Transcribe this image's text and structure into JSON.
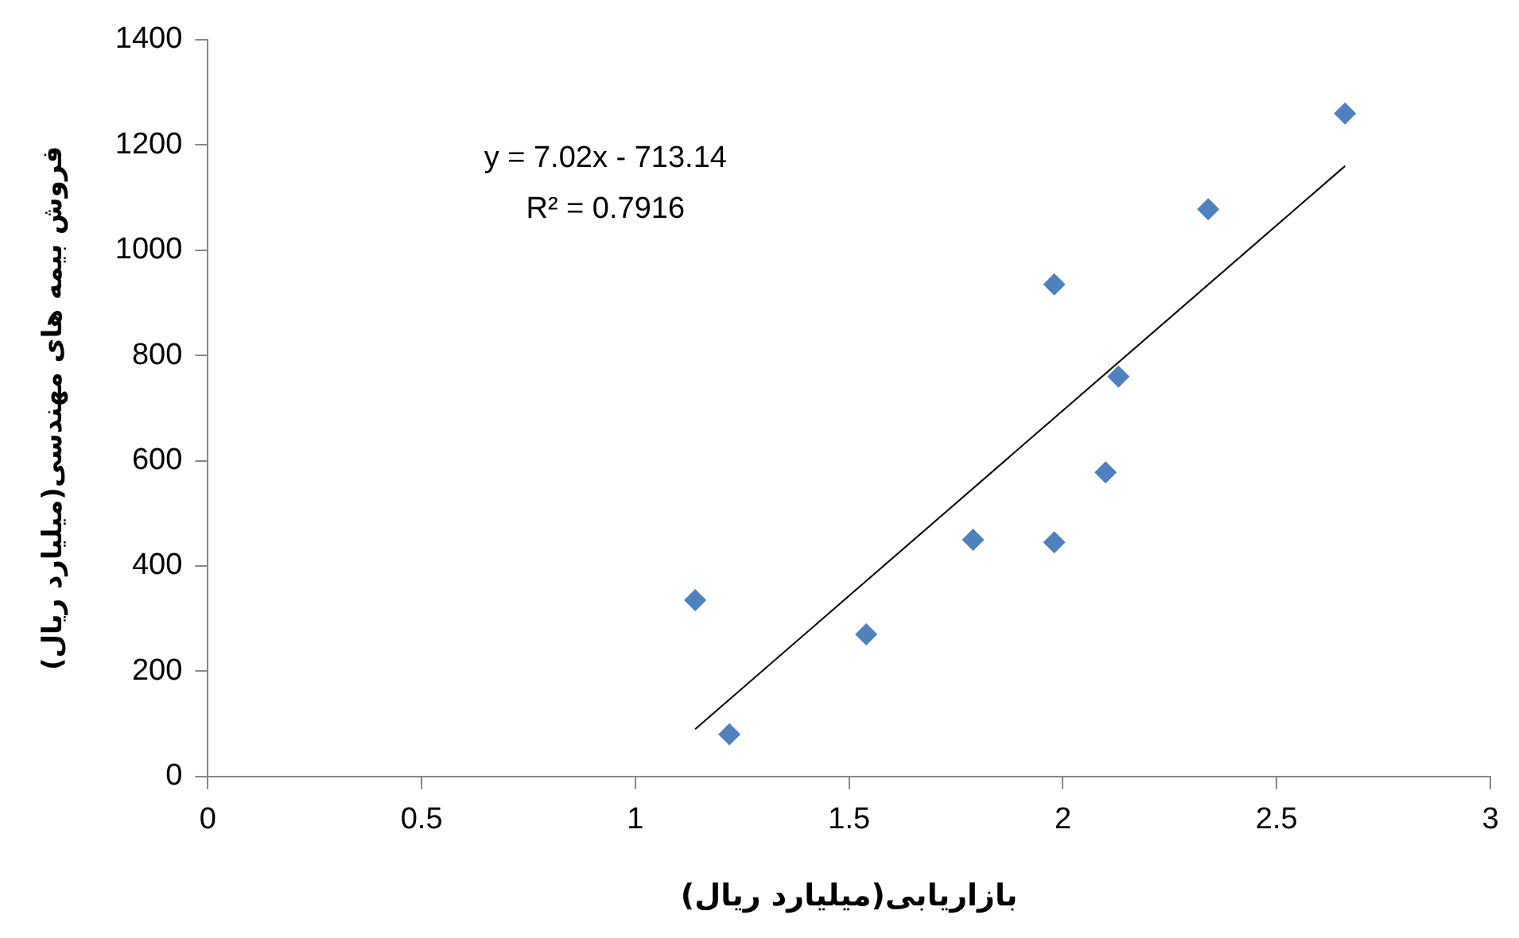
{
  "chart_data": {
    "type": "scatter",
    "xlabel": "بازاریابی(میلیارد ریال)",
    "ylabel": "فروش بیمه های مهندسی(میلیارد ریال)",
    "annotations": [
      "y = 7.02x - 713.14",
      "R² = 0.7916"
    ],
    "x": [
      1.14,
      1.22,
      1.54,
      1.79,
      1.98,
      1.98,
      2.1,
      2.13,
      2.34,
      2.66
    ],
    "series": [
      {
        "color": "#4f81bd",
        "values": [
          335,
          80,
          270,
          450,
          935,
          445,
          578,
          760,
          1078,
          1260
        ]
      },
      {
        "type": "line",
        "color": "#000000",
        "x": [
          1.14,
          2.66
        ],
        "values": [
          90,
          1160
        ],
        "marker": "none"
      }
    ],
    "xlim": [
      0,
      3
    ],
    "xticks": [
      0,
      0.5,
      1,
      1.5,
      2,
      2.5,
      3
    ],
    "ylim": [
      0,
      1400
    ],
    "yticks": [
      0,
      200,
      400,
      600,
      800,
      1000,
      1200,
      1400
    ],
    "grid": false,
    "legend": false,
    "marker": "diamond"
  }
}
